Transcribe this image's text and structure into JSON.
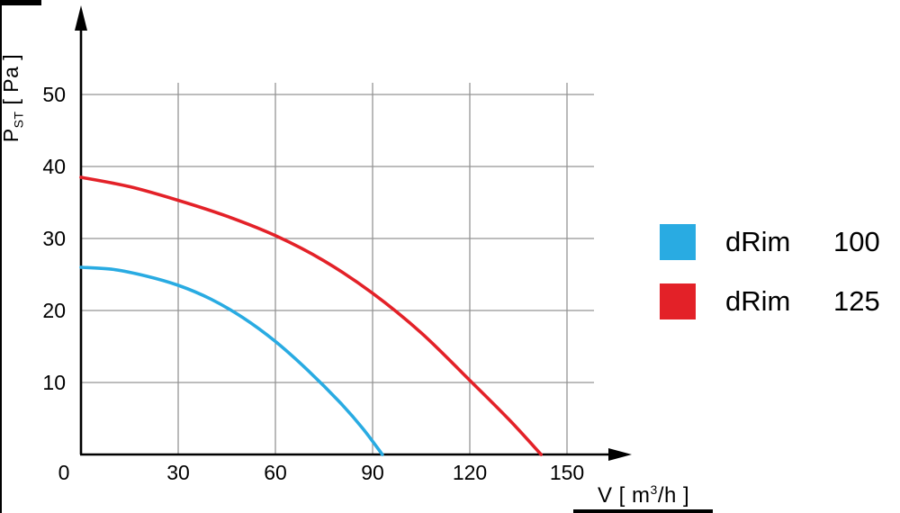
{
  "chart_data": {
    "type": "line",
    "title": "",
    "grid": true,
    "grid_color": "#949494",
    "axis_color": "#000000",
    "background": "#ffffff",
    "legend_position": "right",
    "x_axis": {
      "label_prefix": "V [ m",
      "label_sup": "3",
      "label_suffix": "/h ]",
      "ticks": [
        0,
        30,
        60,
        90,
        120,
        150
      ],
      "range": [
        0,
        168
      ]
    },
    "y_axis": {
      "symbol": "P",
      "symbol_sub": "ST",
      "unit": " [ Pa ]",
      "ticks": [
        10,
        20,
        30,
        40,
        50
      ],
      "range": [
        0,
        58
      ]
    },
    "series": [
      {
        "name": "dRim 100",
        "color": "#29abe2",
        "points": [
          [
            0,
            26
          ],
          [
            10,
            25.7
          ],
          [
            20,
            24.8
          ],
          [
            30,
            23.5
          ],
          [
            40,
            21.6
          ],
          [
            50,
            19.0
          ],
          [
            60,
            15.7
          ],
          [
            70,
            11.7
          ],
          [
            80,
            7.2
          ],
          [
            87,
            3.6
          ],
          [
            93,
            0
          ]
        ]
      },
      {
        "name": "dRim 125",
        "color": "#e32128",
        "points": [
          [
            0,
            38.5
          ],
          [
            15,
            37.2
          ],
          [
            30,
            35.3
          ],
          [
            45,
            33.1
          ],
          [
            60,
            30.4
          ],
          [
            75,
            26.9
          ],
          [
            90,
            22.4
          ],
          [
            105,
            16.9
          ],
          [
            120,
            10.3
          ],
          [
            132,
            4.9
          ],
          [
            142,
            0
          ]
        ]
      }
    ],
    "legend": [
      {
        "model": "dRim",
        "size": "100",
        "color": "#29abe2"
      },
      {
        "model": "dRim",
        "size": "125",
        "color": "#e32128"
      }
    ]
  }
}
